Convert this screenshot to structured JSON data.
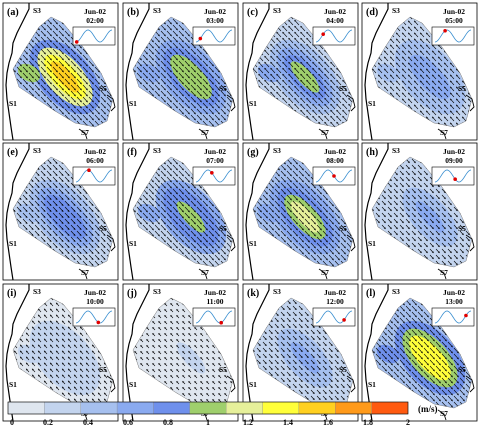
{
  "panels": [
    {
      "id": "(a)",
      "date": "Jun-02",
      "time": "02:00",
      "tide_phase": 0.02,
      "intensity": 1.55
    },
    {
      "id": "(b)",
      "date": "Jun-02",
      "time": "03:00",
      "tide_phase": 0.12,
      "intensity": 1.05
    },
    {
      "id": "(c)",
      "date": "Jun-02",
      "time": "04:00",
      "tide_phase": 0.2,
      "intensity": 0.95
    },
    {
      "id": "(d)",
      "date": "Jun-02",
      "time": "05:00",
      "tide_phase": 0.28,
      "intensity": 0.7
    },
    {
      "id": "(e)",
      "date": "Jun-02",
      "time": "06:00",
      "tide_phase": 0.36,
      "intensity": 0.85
    },
    {
      "id": "(f)",
      "date": "Jun-02",
      "time": "07:00",
      "tide_phase": 0.44,
      "intensity": 1.0
    },
    {
      "id": "(g)",
      "date": "Jun-02",
      "time": "08:00",
      "tide_phase": 0.5,
      "intensity": 1.2
    },
    {
      "id": "(h)",
      "date": "Jun-02",
      "time": "09:00",
      "tide_phase": 0.56,
      "intensity": 0.6
    },
    {
      "id": "(i)",
      "date": "Jun-02",
      "time": "10:00",
      "tide_phase": 0.62,
      "intensity": 0.35
    },
    {
      "id": "(j)",
      "date": "Jun-02",
      "time": "11:00",
      "tide_phase": 0.7,
      "intensity": 0.2
    },
    {
      "id": "(k)",
      "date": "Jun-02",
      "time": "12:00",
      "tide_phase": 0.78,
      "intensity": 0.55
    },
    {
      "id": "(l)",
      "date": "Jun-02",
      "time": "13:00",
      "tide_phase": 0.86,
      "intensity": 1.45
    }
  ],
  "sites": {
    "s1": "S1",
    "s3": "S3",
    "s5": "S5",
    "s7": "S7"
  },
  "colorbar": {
    "ticks": [
      "0",
      "0.2",
      "0.4",
      "0.6",
      "0.8",
      "1",
      "1.2",
      "1.4",
      "1.6",
      "1.8",
      "2"
    ],
    "unit": "(m/s)",
    "colors": [
      "#dfe6ef",
      "#c3d4ee",
      "#a6c0ef",
      "#8aaaf0",
      "#6f90ec",
      "#9fcf6c",
      "#e6f09a",
      "#ffff3a",
      "#ffd020",
      "#ff9a1a",
      "#ff5a10"
    ],
    "min": 0,
    "max": 2
  }
}
